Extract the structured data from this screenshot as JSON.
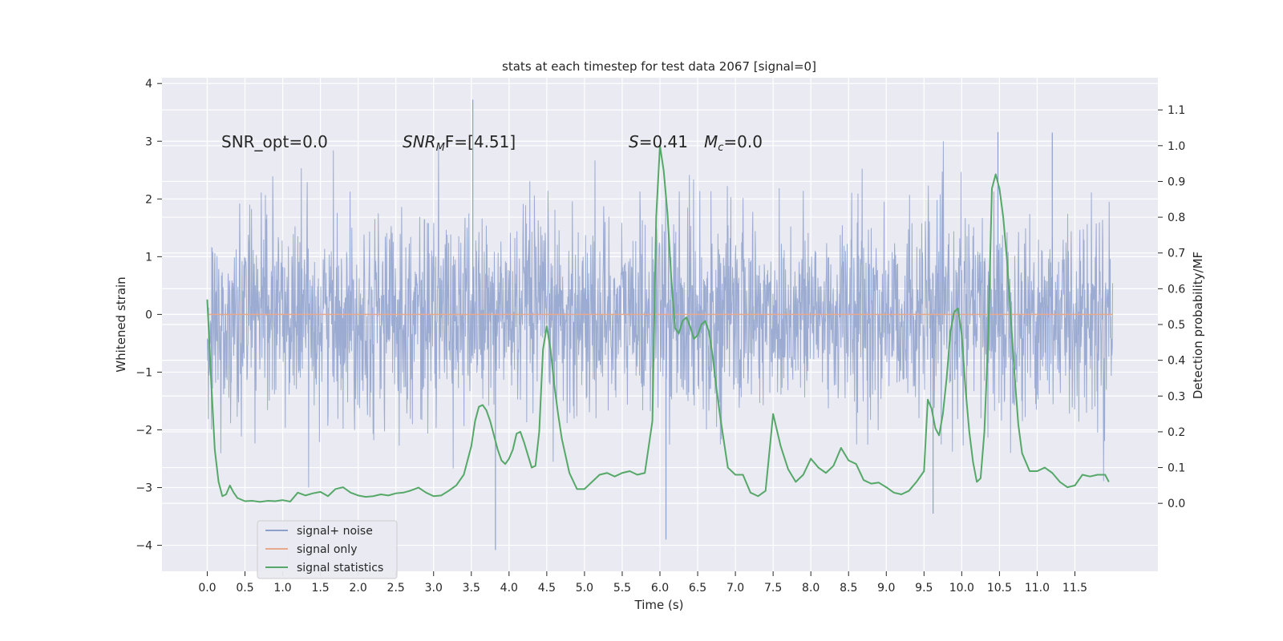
{
  "chart_data": {
    "type": "line",
    "title": "stats at each timestep for test data 2067 [signal=0]",
    "xlabel": "Time (s)",
    "ylabel_left": "Whitened strain",
    "ylabel_right": "Detection probability/MF",
    "xlim": [
      -0.6,
      12.6
    ],
    "ylim_left": [
      -4.45,
      4.1
    ],
    "ylim_right": [
      -0.19,
      1.19
    ],
    "x_ticks": [
      "0.0",
      "0.5",
      "1.0",
      "1.5",
      "2.0",
      "2.5",
      "3.0",
      "3.5",
      "4.0",
      "4.5",
      "5.0",
      "5.5",
      "6.0",
      "6.5",
      "7.0",
      "7.5",
      "8.0",
      "8.5",
      "9.0",
      "9.5",
      "10.0",
      "10.5",
      "11.0",
      "11.5"
    ],
    "y_ticks_left": [
      "4",
      "3",
      "2",
      "1",
      "0",
      "−1",
      "−2",
      "−3",
      "−4"
    ],
    "y_ticks_right": [
      "1.1",
      "1.0",
      "0.9",
      "0.8",
      "0.7",
      "0.6",
      "0.5",
      "0.4",
      "0.3",
      "0.2",
      "0.1",
      "0.0"
    ],
    "grid": true,
    "legend_position": "lower-left",
    "annotations": {
      "snr_opt": "SNR_opt=0.0",
      "snr_mf_base": "SNR",
      "snr_mf_sub": "M",
      "snr_mf_tail": "F=[4.51]",
      "s_value": "S=0.41",
      "mc_base": "M",
      "mc_sub": "c",
      "mc_tail": "=0.0"
    },
    "series": [
      {
        "name": "signal+ noise",
        "color": "#8da0cb",
        "axis": "left",
        "style": "noise",
        "x_range": [
          0.0,
          12.0
        ],
        "approx_std": 0.85,
        "peak_examples": [
          {
            "x": 3.52,
            "y": 3.72
          },
          {
            "x": 3.82,
            "y": -4.08
          },
          {
            "x": 10.48,
            "y": 3.16
          },
          {
            "x": 11.2,
            "y": 3.15
          },
          {
            "x": 6.08,
            "y": -3.9
          },
          {
            "x": 9.62,
            "y": -3.45
          }
        ]
      },
      {
        "name": "signal only",
        "color": "#e8a88c",
        "axis": "left",
        "x": [
          0.0,
          12.0
        ],
        "y": [
          0.0,
          0.0
        ]
      },
      {
        "name": "signal statistics",
        "color": "#55a868",
        "axis": "right",
        "x": [
          0.0,
          0.05,
          0.1,
          0.15,
          0.2,
          0.25,
          0.3,
          0.35,
          0.4,
          0.5,
          0.6,
          0.7,
          0.8,
          0.9,
          1.0,
          1.1,
          1.2,
          1.3,
          1.4,
          1.5,
          1.6,
          1.7,
          1.8,
          1.9,
          2.0,
          2.1,
          2.2,
          2.3,
          2.4,
          2.5,
          2.6,
          2.7,
          2.8,
          2.9,
          3.0,
          3.1,
          3.2,
          3.3,
          3.4,
          3.5,
          3.55,
          3.6,
          3.65,
          3.7,
          3.75,
          3.8,
          3.85,
          3.9,
          3.95,
          4.0,
          4.05,
          4.1,
          4.15,
          4.2,
          4.25,
          4.3,
          4.35,
          4.4,
          4.45,
          4.5,
          4.55,
          4.6,
          4.65,
          4.7,
          4.8,
          4.9,
          5.0,
          5.1,
          5.2,
          5.3,
          5.4,
          5.5,
          5.6,
          5.7,
          5.8,
          5.9,
          5.95,
          6.0,
          6.05,
          6.1,
          6.15,
          6.2,
          6.25,
          6.3,
          6.35,
          6.4,
          6.45,
          6.5,
          6.55,
          6.6,
          6.65,
          6.7,
          6.75,
          6.8,
          6.9,
          7.0,
          7.1,
          7.2,
          7.3,
          7.4,
          7.5,
          7.6,
          7.7,
          7.8,
          7.9,
          8.0,
          8.1,
          8.2,
          8.3,
          8.4,
          8.5,
          8.6,
          8.7,
          8.8,
          8.9,
          9.0,
          9.1,
          9.2,
          9.3,
          9.4,
          9.5,
          9.55,
          9.6,
          9.65,
          9.7,
          9.75,
          9.8,
          9.85,
          9.9,
          9.95,
          10.0,
          10.05,
          10.1,
          10.15,
          10.2,
          10.25,
          10.3,
          10.35,
          10.4,
          10.45,
          10.5,
          10.55,
          10.6,
          10.65,
          10.7,
          10.75,
          10.8,
          10.9,
          11.0,
          11.1,
          11.2,
          11.3,
          11.4,
          11.5,
          11.6,
          11.7,
          11.8,
          11.9,
          11.95
        ],
        "y": [
          0.57,
          0.35,
          0.15,
          0.06,
          0.02,
          0.025,
          0.05,
          0.03,
          0.015,
          0.006,
          0.007,
          0.004,
          0.007,
          0.006,
          0.009,
          0.005,
          0.03,
          0.022,
          0.028,
          0.032,
          0.02,
          0.04,
          0.045,
          0.03,
          0.022,
          0.018,
          0.02,
          0.025,
          0.022,
          0.028,
          0.03,
          0.036,
          0.044,
          0.03,
          0.02,
          0.022,
          0.035,
          0.05,
          0.08,
          0.16,
          0.23,
          0.27,
          0.275,
          0.26,
          0.23,
          0.19,
          0.15,
          0.12,
          0.11,
          0.125,
          0.15,
          0.195,
          0.2,
          0.17,
          0.135,
          0.1,
          0.105,
          0.2,
          0.43,
          0.495,
          0.43,
          0.33,
          0.25,
          0.18,
          0.085,
          0.04,
          0.04,
          0.06,
          0.08,
          0.085,
          0.075,
          0.085,
          0.09,
          0.08,
          0.085,
          0.23,
          0.8,
          1.0,
          0.93,
          0.81,
          0.63,
          0.49,
          0.475,
          0.51,
          0.52,
          0.495,
          0.46,
          0.47,
          0.5,
          0.51,
          0.48,
          0.41,
          0.32,
          0.24,
          0.1,
          0.08,
          0.08,
          0.03,
          0.02,
          0.035,
          0.25,
          0.16,
          0.095,
          0.06,
          0.08,
          0.125,
          0.1,
          0.085,
          0.105,
          0.155,
          0.12,
          0.11,
          0.065,
          0.055,
          0.058,
          0.045,
          0.03,
          0.025,
          0.035,
          0.06,
          0.09,
          0.29,
          0.265,
          0.21,
          0.19,
          0.25,
          0.35,
          0.48,
          0.535,
          0.545,
          0.47,
          0.32,
          0.2,
          0.115,
          0.06,
          0.07,
          0.2,
          0.46,
          0.88,
          0.92,
          0.88,
          0.8,
          0.68,
          0.52,
          0.36,
          0.22,
          0.14,
          0.09,
          0.09,
          0.1,
          0.085,
          0.06,
          0.045,
          0.05,
          0.08,
          0.075,
          0.08,
          0.08,
          0.06
        ]
      }
    ]
  }
}
